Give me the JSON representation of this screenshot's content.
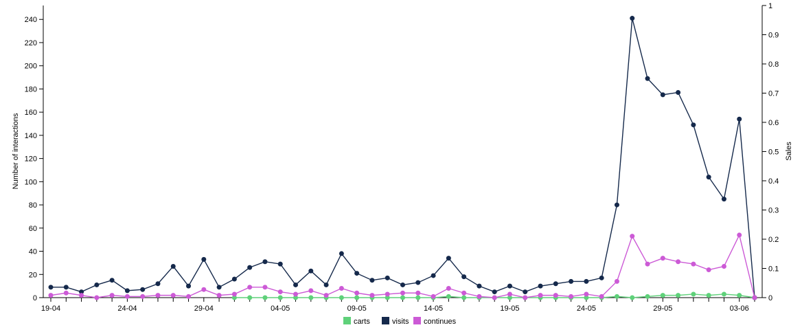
{
  "chart_data": {
    "type": "line",
    "xlabel": "",
    "ylabel": "Number of interactions",
    "y2label": "Sales",
    "ylim": [
      0,
      252
    ],
    "y2lim": [
      0,
      1
    ],
    "yticks": [
      0,
      20,
      40,
      60,
      80,
      100,
      120,
      140,
      160,
      180,
      200,
      220,
      240
    ],
    "y2ticks": [
      "0",
      "0.1",
      "0.2",
      "0.3",
      "0.4",
      "0.5",
      "0.6",
      "0.7",
      "0.8",
      "0.9",
      "1"
    ],
    "x": [
      "19-04",
      "20-04",
      "21-04",
      "22-04",
      "23-04",
      "24-04",
      "25-04",
      "26-04",
      "27-04",
      "28-04",
      "29-04",
      "30-04",
      "01-05",
      "02-05",
      "03-05",
      "04-05",
      "05-05",
      "06-05",
      "07-05",
      "08-05",
      "09-05",
      "10-05",
      "11-05",
      "12-05",
      "13-05",
      "14-05",
      "15-05",
      "16-05",
      "17-05",
      "18-05",
      "19-05",
      "20-05",
      "21-05",
      "22-05",
      "23-05",
      "24-05",
      "25-05",
      "26-05",
      "27-05",
      "28-05",
      "29-05",
      "30-05",
      "31-05",
      "01-06",
      "02-06",
      "03-06",
      "04-06"
    ],
    "xtick_labels": [
      "19-04",
      "24-04",
      "29-04",
      "04-05",
      "09-05",
      "14-05",
      "19-05",
      "24-05",
      "29-05",
      "03-06"
    ],
    "legend_position": "bottom",
    "grid": false,
    "series": [
      {
        "name": "carts",
        "color": "#5fd17a",
        "values": [
          null,
          null,
          null,
          null,
          null,
          null,
          null,
          null,
          null,
          null,
          null,
          null,
          0,
          0,
          0,
          0,
          0,
          0,
          0,
          0,
          0,
          0,
          0,
          0,
          0,
          0,
          1,
          0,
          0,
          0,
          0,
          0,
          0,
          0,
          0,
          0,
          0,
          1,
          0,
          1,
          2,
          2,
          3,
          2,
          3,
          2,
          0
        ]
      },
      {
        "name": "visits",
        "color": "#15294b",
        "values": [
          9,
          9,
          5,
          11,
          15,
          6,
          7,
          12,
          27,
          10,
          33,
          9,
          16,
          26,
          31,
          29,
          11,
          23,
          11,
          38,
          21,
          15,
          17,
          11,
          13,
          19,
          34,
          18,
          10,
          5,
          10,
          5,
          10,
          12,
          14,
          14,
          17,
          80,
          241,
          189,
          175,
          177,
          149,
          104,
          85,
          154,
          0
        ]
      },
      {
        "name": "continues",
        "color": "#cc5ad6",
        "values": [
          2,
          4,
          2,
          0,
          2,
          1,
          1,
          2,
          2,
          1,
          7,
          2,
          3,
          9,
          9,
          5,
          3,
          6,
          2,
          8,
          4,
          2,
          3,
          4,
          4,
          1,
          8,
          4,
          1,
          0,
          3,
          0,
          2,
          2,
          1,
          3,
          1,
          14,
          53,
          29,
          34,
          31,
          29,
          24,
          27,
          54,
          0
        ]
      }
    ]
  }
}
